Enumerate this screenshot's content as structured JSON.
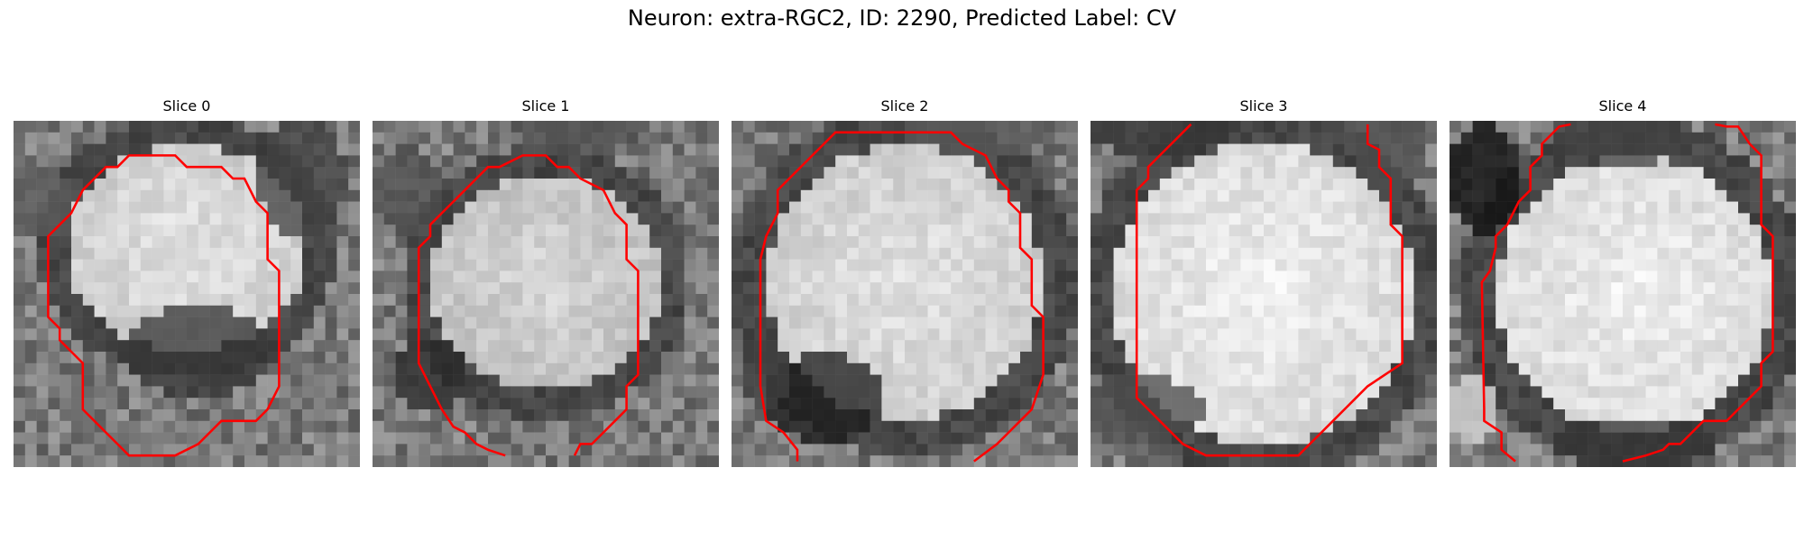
{
  "figure": {
    "title": "Neuron: extra-RGC2, ID: 2290, Predicted Label: CV",
    "contour_color": "#ff0000",
    "panels": [
      {
        "title": "Slice 0"
      },
      {
        "title": "Slice 1"
      },
      {
        "title": "Slice 2"
      },
      {
        "title": "Slice 3"
      },
      {
        "title": "Slice 4"
      }
    ]
  }
}
